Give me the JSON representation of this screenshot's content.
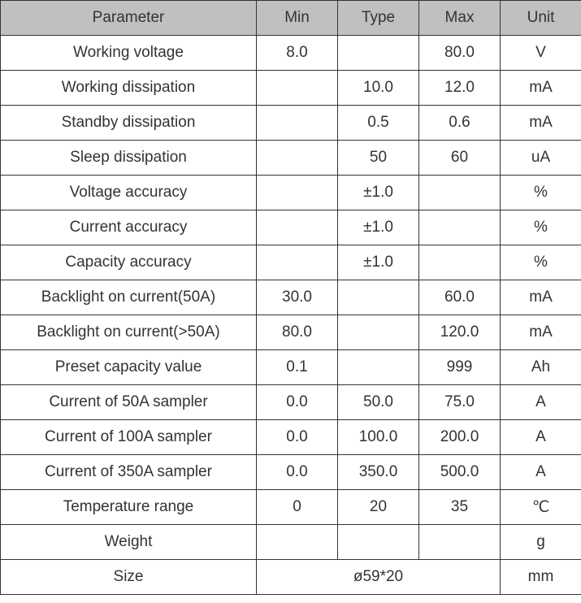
{
  "table": {
    "columns": [
      "Parameter",
      "Min",
      "Type",
      "Max",
      "Unit"
    ],
    "header_bg": "#c0c0c0",
    "border_color": "#333333",
    "text_color": "#333333",
    "font_size": 19,
    "rows": [
      {
        "param": "Working voltage",
        "min": "8.0",
        "type": "",
        "max": "80.0",
        "unit": "V"
      },
      {
        "param": "Working dissipation",
        "min": "",
        "type": "10.0",
        "max": "12.0",
        "unit": "mA"
      },
      {
        "param": "Standby dissipation",
        "min": "",
        "type": "0.5",
        "max": "0.6",
        "unit": "mA"
      },
      {
        "param": "Sleep dissipation",
        "min": "",
        "type": "50",
        "max": "60",
        "unit": "uA"
      },
      {
        "param": "Voltage accuracy",
        "min": "",
        "type": "±1.0",
        "max": "",
        "unit": "%"
      },
      {
        "param": "Current accuracy",
        "min": "",
        "type": "±1.0",
        "max": "",
        "unit": "%"
      },
      {
        "param": "Capacity accuracy",
        "min": "",
        "type": "±1.0",
        "max": "",
        "unit": "%"
      },
      {
        "param": "Backlight on current(50A)",
        "min": "30.0",
        "type": "",
        "max": "60.0",
        "unit": "mA"
      },
      {
        "param": "Backlight on current(>50A)",
        "min": "80.0",
        "type": "",
        "max": "120.0",
        "unit": "mA"
      },
      {
        "param": "Preset capacity value",
        "min": "0.1",
        "type": "",
        "max": "999",
        "unit": "Ah"
      },
      {
        "param": "Current of 50A sampler",
        "min": "0.0",
        "type": "50.0",
        "max": "75.0",
        "unit": "A"
      },
      {
        "param": "Current of 100A sampler",
        "min": "0.0",
        "type": "100.0",
        "max": "200.0",
        "unit": "A"
      },
      {
        "param": "Current of 350A sampler",
        "min": "0.0",
        "type": "350.0",
        "max": "500.0",
        "unit": "A"
      },
      {
        "param": "Temperature range",
        "min": "0",
        "type": "20",
        "max": "35",
        "unit": "℃"
      },
      {
        "param": "Weight",
        "min": "",
        "type": "",
        "max": "",
        "unit": "g"
      }
    ],
    "size_row": {
      "param": "Size",
      "value": "ø59*20",
      "unit": "mm"
    }
  }
}
